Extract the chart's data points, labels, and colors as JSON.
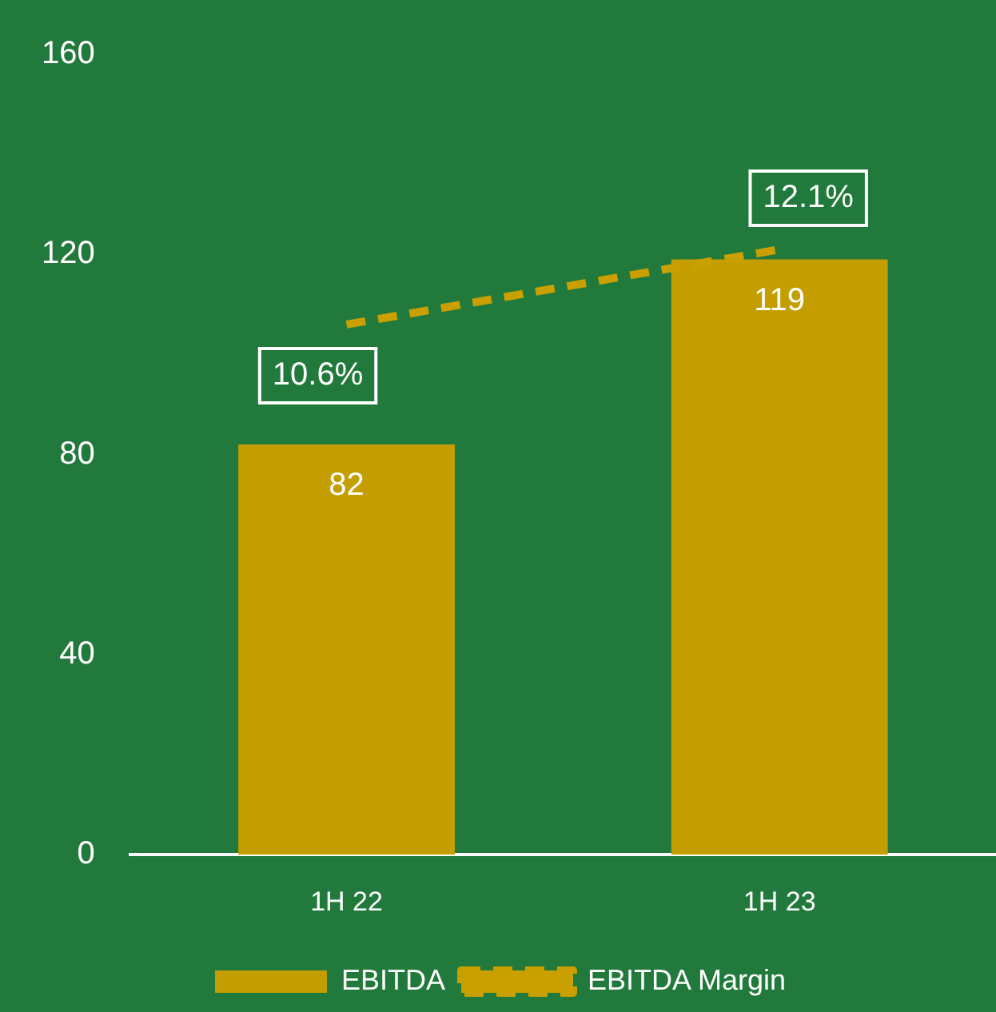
{
  "chart_data": {
    "type": "bar",
    "categories": [
      "1H 22",
      "1H 23"
    ],
    "series": [
      {
        "name": "EBITDA",
        "type": "bar",
        "color": "#c49e00",
        "values": [
          82,
          119
        ]
      },
      {
        "name": "EBITDA Margin",
        "type": "line",
        "axis": "y2",
        "color": "#c9a000",
        "line_style": "dashed",
        "marker": "none",
        "values": [
          10.6,
          12.1
        ],
        "value_labels": [
          "10.6%",
          "12.1%"
        ]
      }
    ],
    "ylim": [
      0,
      160
    ],
    "yticks": [
      0,
      40,
      80,
      120,
      160
    ],
    "tick_labels": "xy",
    "data_labels": true,
    "grid": false,
    "legend": "bottom"
  }
}
